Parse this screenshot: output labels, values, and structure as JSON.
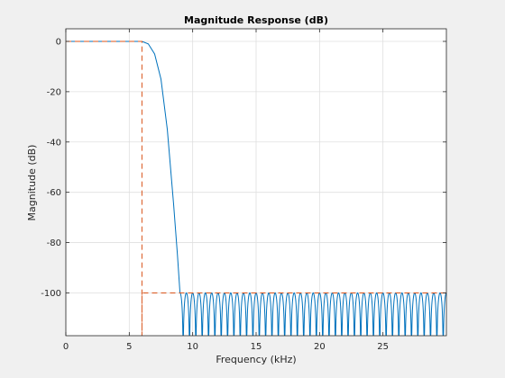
{
  "chart_data": {
    "type": "line",
    "title": "Magnitude Response (dB)",
    "xlabel": "Frequency (kHz)",
    "ylabel": "Magnitude (dB)",
    "xlim": [
      0,
      30
    ],
    "ylim": [
      -117,
      5
    ],
    "xticks": [
      0,
      5,
      10,
      15,
      20,
      25
    ],
    "xtick_labels": [
      "0",
      "5",
      "10",
      "15",
      "20",
      "25"
    ],
    "yticks": [
      0,
      -20,
      -40,
      -60,
      -80,
      -100
    ],
    "ytick_labels": [
      "0",
      "-20",
      "-40",
      "-60",
      "-80",
      "-100"
    ],
    "grid": true,
    "series": [
      {
        "role": "magnitude-response",
        "color": "#0072bd",
        "style": "solid",
        "passband": {
          "x_end": 6.0,
          "value": 0
        },
        "transition": {
          "x": [
            6.0,
            6.5,
            7.0,
            7.5,
            8.0,
            8.5,
            8.8,
            9.0
          ],
          "y": [
            0,
            -1,
            -5,
            -15,
            -35,
            -65,
            -85,
            -100
          ]
        },
        "stopband": {
          "x_start": 9.0,
          "x_end": 30,
          "peak": -100,
          "floor": -117,
          "ripple_period_khz": 0.5
        }
      },
      {
        "role": "specification-mask",
        "color": "#d95319",
        "style": "dashed",
        "x": [
          0,
          6,
          6,
          6,
          30
        ],
        "y": [
          0,
          0,
          -117,
          -100,
          -100
        ]
      }
    ],
    "colors": {
      "figure_bg": "#f0f0f0",
      "axes_bg": "#ffffff",
      "grid": "#dfdfdf",
      "axis": "#262626"
    }
  }
}
